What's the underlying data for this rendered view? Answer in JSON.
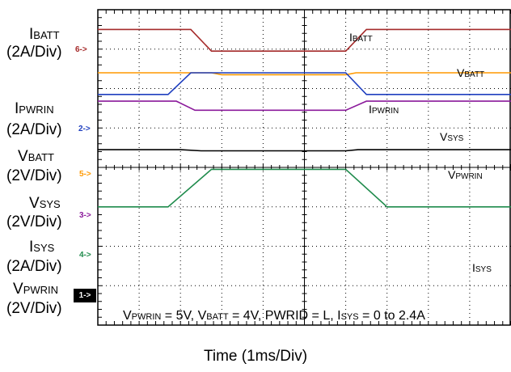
{
  "chart_data": {
    "type": "line",
    "xlabel": "Time (1ms/Div)",
    "footer": {
      "t1": "V",
      "s1": "PWRIN",
      "t2": " = 5V, V",
      "s2": "BATT",
      "t3": " = 4V, PWRID = L, I",
      "s3": "SYS",
      "t4": " = 0 to 2.4A"
    },
    "channel_labels": [
      {
        "id": "ibatt",
        "main": "I",
        "sub": "BATT",
        "div": "(2A/Div)",
        "marker": "6->",
        "color": "#a52a2a"
      },
      {
        "id": "ipwrin",
        "main": "I",
        "sub": "PWRIN",
        "div": "(2A/Div)",
        "marker": "2->",
        "color": "#1f3fbf"
      },
      {
        "id": "vbatt",
        "main": "V",
        "sub": "BATT",
        "div": "(2V/Div)",
        "marker": "5->",
        "color": "#ff9900"
      },
      {
        "id": "vsys",
        "main": "V",
        "sub": "SYS",
        "div": "(2V/Div)",
        "marker": "3->",
        "color": "#8b1a9b"
      },
      {
        "id": "isys",
        "main": "I",
        "sub": "SYS",
        "div": "(2A/Div)",
        "marker": "4->",
        "color": "#1f8b4c"
      },
      {
        "id": "vpwrin",
        "main": "V",
        "sub": "PWRIN",
        "div": "(2V/Div)",
        "marker": "1->",
        "color": "#000000"
      }
    ],
    "trace_labels": [
      {
        "id": "ibatt",
        "main": "I",
        "sub": "BATT"
      },
      {
        "id": "vbatt",
        "main": "V",
        "sub": "BATT"
      },
      {
        "id": "ipwrin",
        "main": "I",
        "sub": "PWRIN"
      },
      {
        "id": "vsys",
        "main": "V",
        "sub": "SYS"
      },
      {
        "id": "vpwrin",
        "main": "V",
        "sub": "PWRIN"
      },
      {
        "id": "isys",
        "main": "I",
        "sub": "SYS"
      }
    ],
    "x_divisions": 10,
    "y_divisions": 8,
    "series": [
      {
        "name": "IBATT",
        "color": "#a52a2a",
        "points": [
          [
            0,
            7.5
          ],
          [
            2.25,
            7.5
          ],
          [
            2.75,
            6.95
          ],
          [
            6.0,
            6.95
          ],
          [
            6.5,
            7.5
          ],
          [
            10,
            7.5
          ]
        ]
      },
      {
        "name": "VBATT",
        "color": "#ff9900",
        "points": [
          [
            0,
            6.4
          ],
          [
            2.75,
            6.4
          ],
          [
            3.0,
            6.35
          ],
          [
            6.0,
            6.35
          ],
          [
            6.25,
            6.4
          ],
          [
            10,
            6.4
          ]
        ]
      },
      {
        "name": "IPWRIN",
        "color": "#1f3fbf",
        "points": [
          [
            0,
            5.85
          ],
          [
            1.7,
            5.85
          ],
          [
            2.25,
            6.4
          ],
          [
            6.0,
            6.4
          ],
          [
            6.5,
            5.85
          ],
          [
            10,
            5.85
          ]
        ]
      },
      {
        "name": "VSYS",
        "color": "#8b1a9b",
        "points": [
          [
            0,
            5.68
          ],
          [
            1.9,
            5.68
          ],
          [
            2.35,
            5.45
          ],
          [
            6.0,
            5.45
          ],
          [
            6.5,
            5.68
          ],
          [
            10,
            5.68
          ]
        ]
      },
      {
        "name": "VPWRIN",
        "color": "#000000",
        "points": [
          [
            0,
            4.45
          ],
          [
            2.0,
            4.45
          ],
          [
            2.5,
            4.42
          ],
          [
            6.0,
            4.42
          ],
          [
            6.3,
            4.45
          ],
          [
            10,
            4.45
          ]
        ]
      },
      {
        "name": "ISYS",
        "color": "#1f8b4c",
        "points": [
          [
            0,
            3.0
          ],
          [
            1.7,
            3.0
          ],
          [
            2.75,
            3.95
          ],
          [
            6.0,
            3.95
          ],
          [
            7.0,
            3.0
          ],
          [
            10,
            3.0
          ]
        ]
      }
    ]
  }
}
